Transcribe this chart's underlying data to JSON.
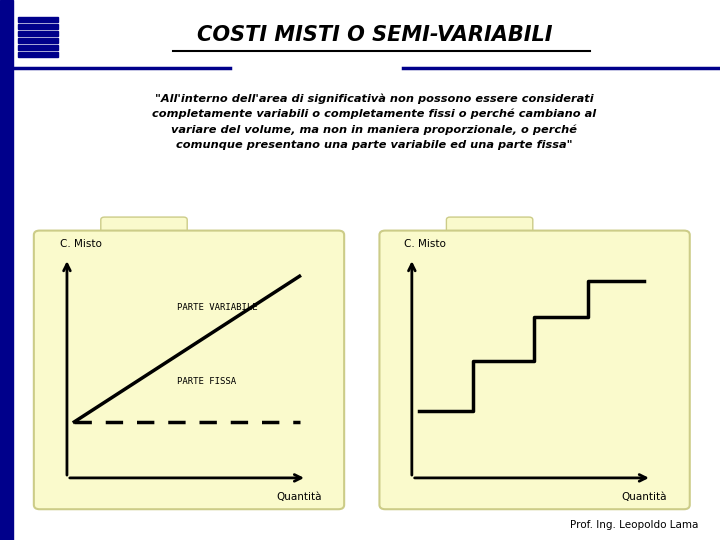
{
  "title": "COSTI MISTI O SEMI-VARIABILI",
  "bg_color": "#FFFFFF",
  "dark_blue": "#00008B",
  "folder_yellow": "#FAFACC",
  "folder_edge": "#CCCC88",
  "body_text_line1": "\"All'interno dell'area di significativà non possono essere considerati",
  "body_text_line2": "completamente variabili o completamente fissi o perché cambiano al",
  "body_text_line3": "variare del volume, ma non in maniera proporzionale, o perché",
  "body_text_line4": "comunque presentano una parte variabile ed una parte fissa\"",
  "left_chart_ylabel": "C. Misto",
  "left_chart_xlabel": "Quantità",
  "left_label_variabile": "PARTE VARIABILE",
  "left_label_fissa": "PARTE FISSA",
  "right_chart_ylabel": "C. Misto",
  "right_chart_xlabel": "Quantità",
  "footer": "Prof. Ing. Leopoldo Lama"
}
